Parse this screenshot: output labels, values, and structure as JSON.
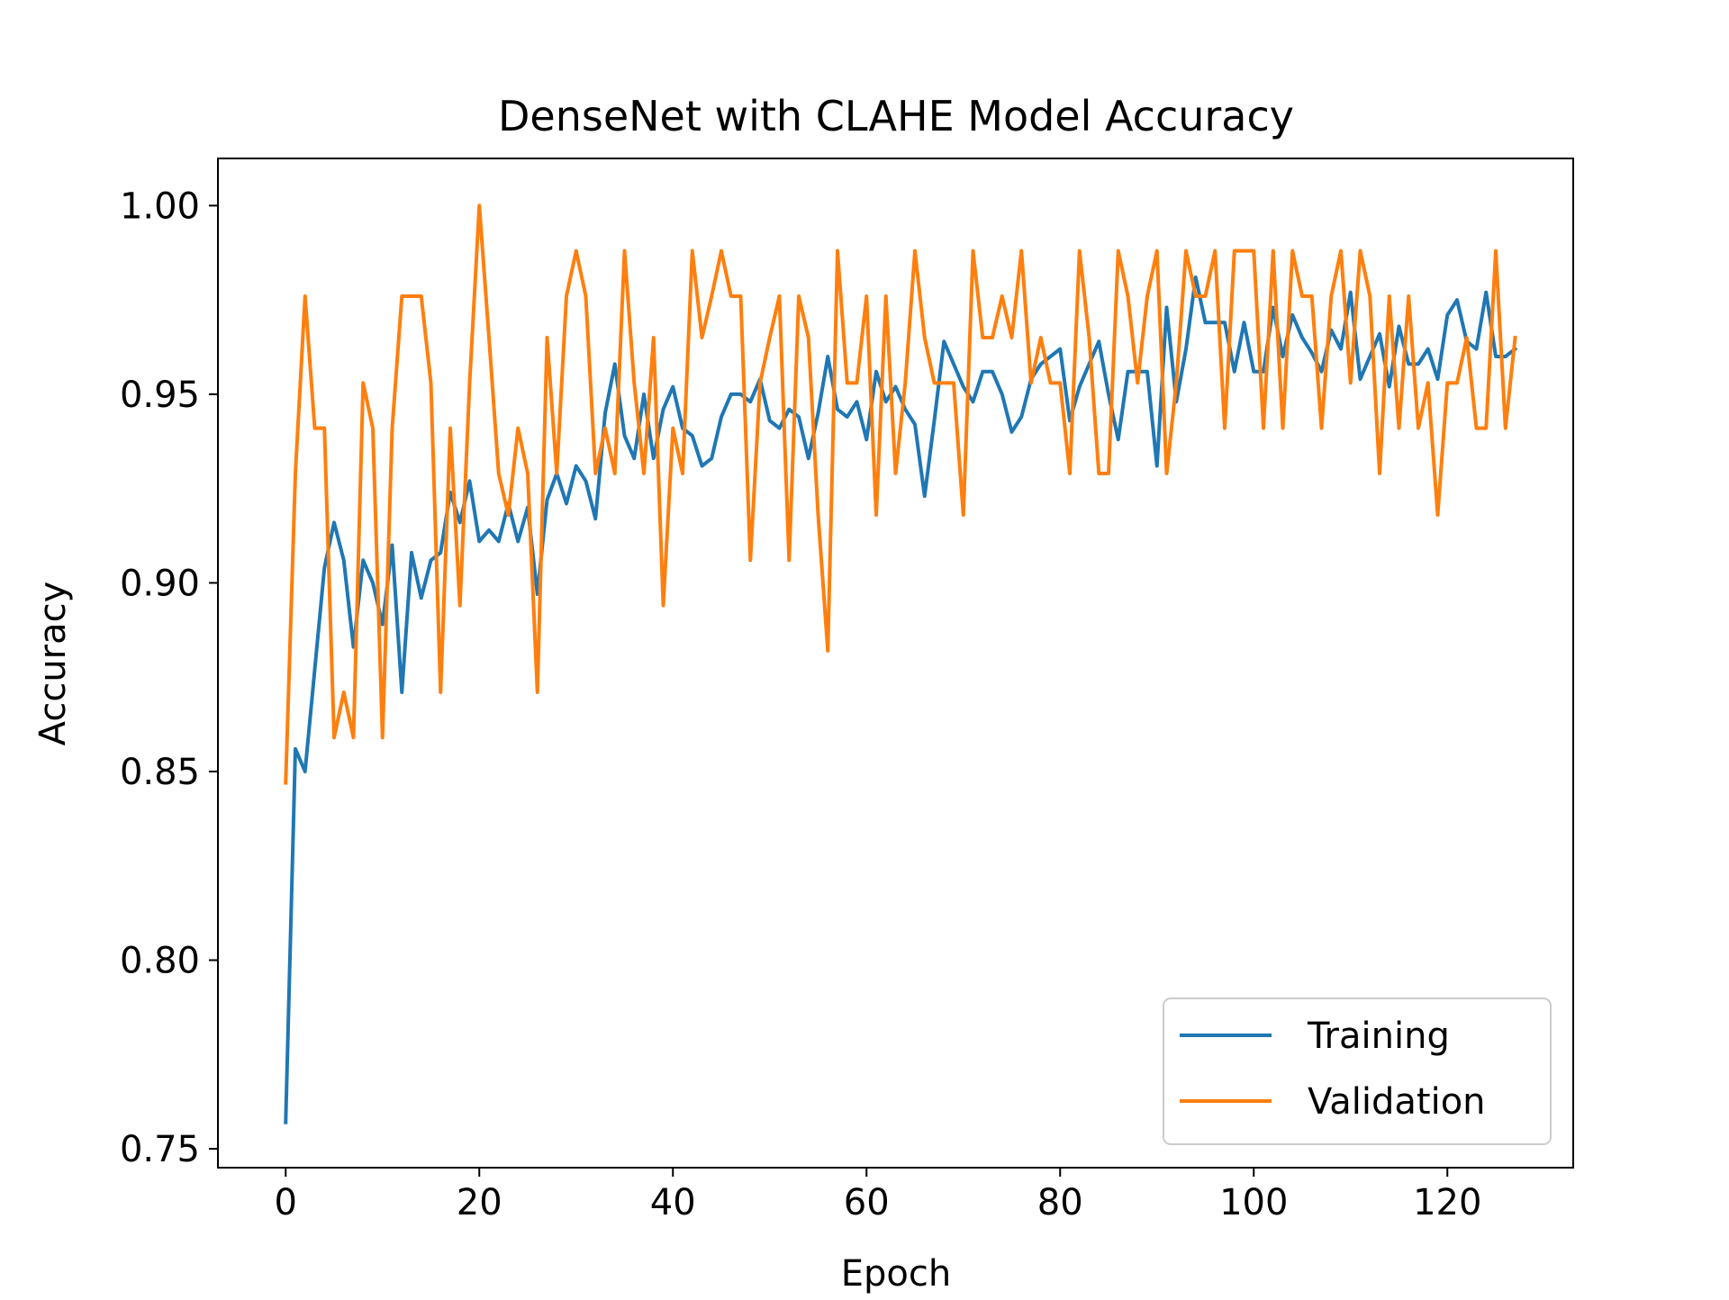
{
  "chart_data": {
    "type": "line",
    "title": "DenseNet with CLAHE Model Accuracy",
    "xlabel": "Epoch",
    "ylabel": "Accuracy",
    "xlim": [
      -7,
      133
    ],
    "ylim": [
      0.745,
      1.0125
    ],
    "xticks": [
      0,
      20,
      40,
      60,
      80,
      100,
      120
    ],
    "xtick_labels": [
      "0",
      "20",
      "40",
      "60",
      "80",
      "100",
      "120"
    ],
    "yticks": [
      0.75,
      0.8,
      0.85,
      0.9,
      0.95,
      1.0
    ],
    "ytick_labels": [
      "0.75",
      "0.80",
      "0.85",
      "0.90",
      "0.95",
      "1.00"
    ],
    "grid": false,
    "legend": "bottom-right",
    "series": [
      {
        "name": "Training",
        "color": "#1f77b4",
        "values": [
          0.757,
          0.856,
          0.85,
          0.877,
          0.904,
          0.916,
          0.906,
          0.883,
          0.906,
          0.9,
          0.889,
          0.91,
          0.871,
          0.908,
          0.896,
          0.906,
          0.908,
          0.924,
          0.916,
          0.927,
          0.911,
          0.914,
          0.911,
          0.921,
          0.911,
          0.92,
          0.897,
          0.922,
          0.929,
          0.921,
          0.931,
          0.927,
          0.917,
          0.945,
          0.958,
          0.939,
          0.933,
          0.95,
          0.933,
          0.946,
          0.952,
          0.941,
          0.939,
          0.931,
          0.933,
          0.944,
          0.95,
          0.95,
          0.948,
          0.954,
          0.943,
          0.941,
          0.946,
          0.944,
          0.933,
          0.945,
          0.96,
          0.946,
          0.944,
          0.948,
          0.938,
          0.956,
          0.948,
          0.952,
          0.946,
          0.942,
          0.923,
          0.943,
          0.964,
          0.958,
          0.952,
          0.948,
          0.956,
          0.956,
          0.95,
          0.94,
          0.944,
          0.954,
          0.958,
          0.96,
          0.962,
          0.943,
          0.952,
          0.958,
          0.964,
          0.95,
          0.938,
          0.956,
          0.956,
          0.956,
          0.931,
          0.973,
          0.948,
          0.962,
          0.981,
          0.969,
          0.969,
          0.969,
          0.956,
          0.969,
          0.956,
          0.956,
          0.973,
          0.96,
          0.971,
          0.965,
          0.961,
          0.956,
          0.967,
          0.962,
          0.977,
          0.954,
          0.96,
          0.966,
          0.952,
          0.968,
          0.958,
          0.958,
          0.962,
          0.954,
          0.971,
          0.975,
          0.964,
          0.962,
          0.977,
          0.96,
          0.96,
          0.962
        ]
      },
      {
        "name": "Validation",
        "color": "#ff7f0e",
        "values": [
          0.847,
          0.929,
          0.976,
          0.941,
          0.941,
          0.859,
          0.871,
          0.859,
          0.953,
          0.941,
          0.859,
          0.941,
          0.976,
          0.976,
          0.976,
          0.953,
          0.871,
          0.941,
          0.894,
          0.953,
          1.0,
          0.965,
          0.929,
          0.918,
          0.941,
          0.929,
          0.871,
          0.965,
          0.929,
          0.976,
          0.988,
          0.976,
          0.929,
          0.941,
          0.929,
          0.988,
          0.953,
          0.929,
          0.965,
          0.894,
          0.941,
          0.929,
          0.988,
          0.965,
          0.976,
          0.988,
          0.976,
          0.976,
          0.906,
          0.953,
          0.965,
          0.976,
          0.906,
          0.976,
          0.965,
          0.918,
          0.882,
          0.988,
          0.953,
          0.953,
          0.976,
          0.918,
          0.976,
          0.929,
          0.953,
          0.988,
          0.965,
          0.953,
          0.953,
          0.953,
          0.918,
          0.988,
          0.965,
          0.965,
          0.976,
          0.965,
          0.988,
          0.953,
          0.965,
          0.953,
          0.953,
          0.929,
          0.988,
          0.965,
          0.929,
          0.929,
          0.988,
          0.976,
          0.953,
          0.976,
          0.988,
          0.929,
          0.953,
          0.988,
          0.976,
          0.976,
          0.988,
          0.941,
          0.988,
          0.988,
          0.988,
          0.941,
          0.988,
          0.941,
          0.988,
          0.976,
          0.976,
          0.941,
          0.976,
          0.988,
          0.953,
          0.988,
          0.976,
          0.929,
          0.976,
          0.941,
          0.976,
          0.941,
          0.953,
          0.918,
          0.953,
          0.953,
          0.965,
          0.941,
          0.941,
          0.988,
          0.941,
          0.965
        ]
      }
    ]
  }
}
